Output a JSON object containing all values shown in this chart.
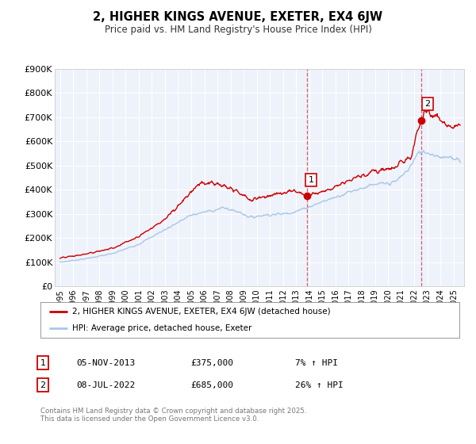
{
  "title": "2, HIGHER KINGS AVENUE, EXETER, EX4 6JW",
  "subtitle": "Price paid vs. HM Land Registry's House Price Index (HPI)",
  "ylim": [
    0,
    900000
  ],
  "yticks": [
    0,
    100000,
    200000,
    300000,
    400000,
    500000,
    600000,
    700000,
    800000,
    900000
  ],
  "ytick_labels": [
    "£0",
    "£100K",
    "£200K",
    "£300K",
    "£400K",
    "£500K",
    "£600K",
    "£700K",
    "£800K",
    "£900K"
  ],
  "xlim_start": 1994.6,
  "xlim_end": 2025.8,
  "xticks": [
    1995,
    1996,
    1997,
    1998,
    1999,
    2000,
    2001,
    2002,
    2003,
    2004,
    2005,
    2006,
    2007,
    2008,
    2009,
    2010,
    2011,
    2012,
    2013,
    2014,
    2015,
    2016,
    2017,
    2018,
    2019,
    2020,
    2021,
    2022,
    2023,
    2024,
    2025
  ],
  "legend_label_red": "2, HIGHER KINGS AVENUE, EXETER, EX4 6JW (detached house)",
  "legend_label_blue": "HPI: Average price, detached house, Exeter",
  "sale1_date": 2013.84,
  "sale1_price": 375000,
  "sale1_label": "1",
  "sale2_date": 2022.52,
  "sale2_price": 685000,
  "sale2_label": "2",
  "annotation1_date": "05-NOV-2013",
  "annotation1_price": "£375,000",
  "annotation1_hpi": "7% ↑ HPI",
  "annotation2_date": "08-JUL-2022",
  "annotation2_price": "£685,000",
  "annotation2_hpi": "26% ↑ HPI",
  "bg_color": "#ffffff",
  "plot_bg_color": "#eef2fb",
  "grid_color": "#ffffff",
  "red_color": "#cc0000",
  "blue_color": "#a8c8e8",
  "footer_text": "Contains HM Land Registry data © Crown copyright and database right 2025.\nThis data is licensed under the Open Government Licence v3.0."
}
